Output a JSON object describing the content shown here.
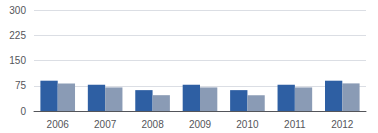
{
  "chart_data": {
    "type": "bar",
    "categories": [
      "2006",
      "2007",
      "2008",
      "2009",
      "2010",
      "2011",
      "2012"
    ],
    "series": [
      {
        "color": "#2E5FA3",
        "values": [
          90,
          78,
          62,
          78,
          62,
          78,
          90
        ]
      },
      {
        "color": "#8A9BB5",
        "values": [
          82,
          70,
          47,
          70,
          47,
          70,
          82
        ]
      }
    ],
    "ylim": [
      0,
      300
    ],
    "yticks": [
      0,
      75,
      150,
      225,
      300
    ],
    "grid": true
  }
}
